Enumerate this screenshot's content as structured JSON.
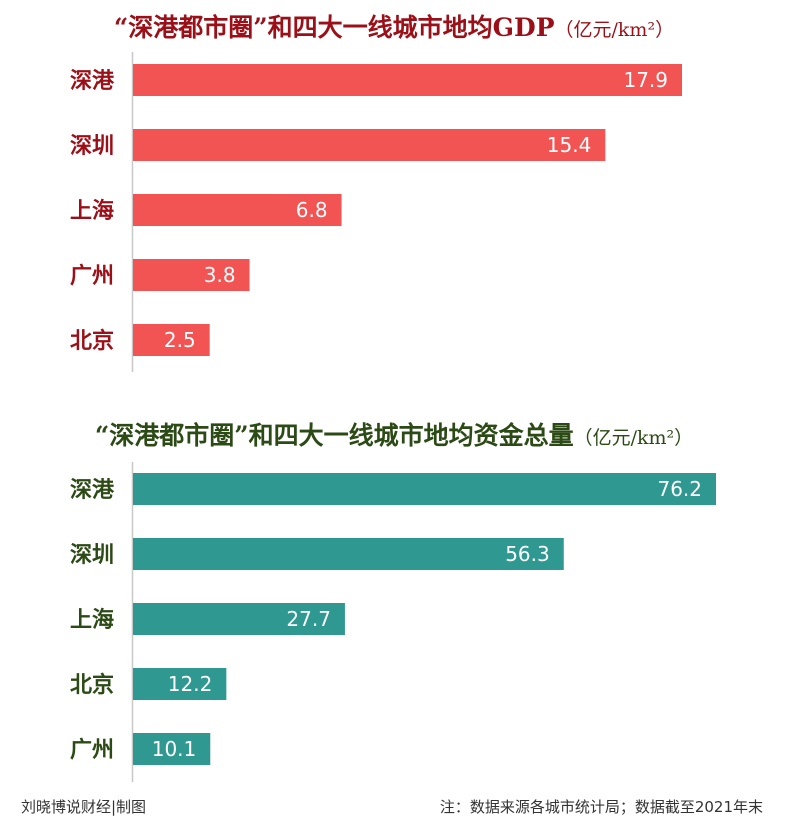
{
  "colors": {
    "chart1_bar": "#f25353",
    "chart1_label": "#9b1018",
    "chart2_bar": "#2e9891",
    "chart2_label": "#2c4a16",
    "axis": "#c8c8c8",
    "value_text": "#ffffff"
  },
  "chart_data": [
    {
      "type": "bar",
      "orientation": "horizontal",
      "title": "“深港都市圈”和四大一线城市地均GDP",
      "unit": "（亿元/km²）",
      "categories": [
        "深港",
        "深圳",
        "上海",
        "广州",
        "北京"
      ],
      "values": [
        17.9,
        15.4,
        6.8,
        3.8,
        2.5
      ],
      "value_labels": [
        "17.9",
        "15.4",
        "6.8",
        "3.8",
        "2.5"
      ],
      "xlim": [
        0,
        20
      ],
      "grid": false,
      "legend": "none"
    },
    {
      "type": "bar",
      "orientation": "horizontal",
      "title": "“深港都市圈”和四大一线城市地均资金总量",
      "unit": "（亿元/km²）",
      "categories": [
        "深港",
        "深圳",
        "上海",
        "北京",
        "广州"
      ],
      "values": [
        76.2,
        56.3,
        27.7,
        12.2,
        10.1
      ],
      "value_labels": [
        "76.2",
        "56.3",
        "27.7",
        "12.2",
        "10.1"
      ],
      "xlim": [
        0,
        80
      ],
      "grid": false,
      "legend": "none"
    }
  ],
  "footer": {
    "left": "刘晓博说财经|制图",
    "right": "注：数据来源各城市统计局；数据截至2021年末"
  }
}
